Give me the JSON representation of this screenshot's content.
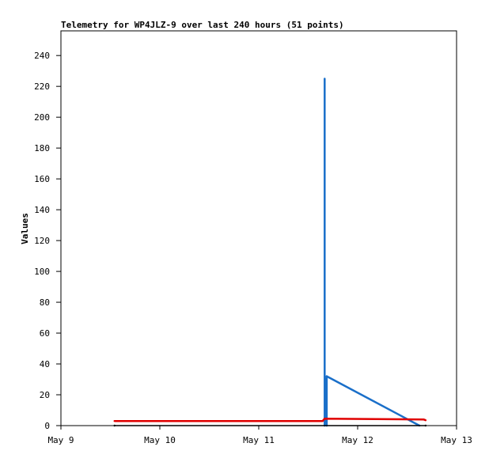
{
  "chart_data": {
    "type": "line",
    "title": "Telemetry for WP4JLZ-9 over last 240 hours (51 points)",
    "ylabel": "Values",
    "xlabel": "",
    "x_tick_labels": [
      "May 9",
      "May 10",
      "May 11",
      "May 12",
      "May 13"
    ],
    "x_range": [
      "May 9",
      "May 13"
    ],
    "ylim": [
      0,
      256
    ],
    "y_ticks": [
      0,
      20,
      40,
      60,
      80,
      100,
      120,
      140,
      160,
      180,
      200,
      220,
      240
    ],
    "grid": false,
    "series": [
      {
        "color": "#1a6fc9",
        "points": [
          {
            "x": "May 11 16:00",
            "y": 225
          },
          {
            "x": "May 11 16:00",
            "y": 0
          },
          {
            "x": "May 11 16:30",
            "y": 32
          },
          {
            "x": "May 11 16:30",
            "y": 0
          },
          {
            "x": "May 11 16:30",
            "y": 32
          },
          {
            "x": "May 12 15:00",
            "y": 0
          }
        ]
      },
      {
        "color": "#e00000",
        "points": [
          {
            "x": "May 9 13:00",
            "y": 3
          },
          {
            "x": "May 11 15:30",
            "y": 3
          },
          {
            "x": "May 11 16:00",
            "y": 4.5
          },
          {
            "x": "May 12 16:00",
            "y": 4
          },
          {
            "x": "May 12 16:30",
            "y": 3.5
          }
        ]
      },
      {
        "color": "#000000",
        "points": [
          {
            "x": "May 9 13:00",
            "y": 0
          },
          {
            "x": "May 12 16:30",
            "y": 0
          }
        ]
      }
    ]
  }
}
